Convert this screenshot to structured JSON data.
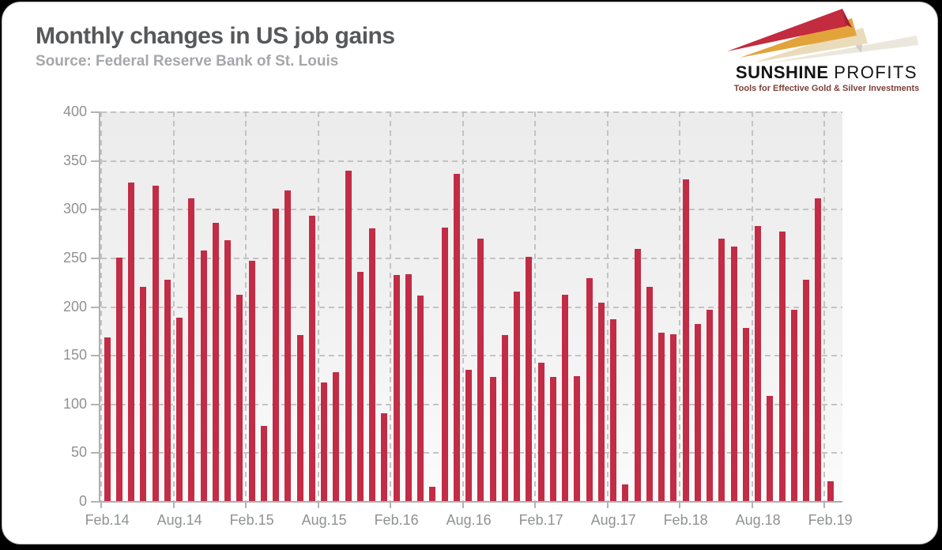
{
  "header": {
    "title": "Monthly changes in US job gains",
    "source": "Source: Federal Reserve Bank of St. Louis"
  },
  "logo": {
    "brand_primary": "SUNSHINE",
    "brand_secondary": "PROFITS",
    "tagline": "Tools for Effective Gold & Silver Investments",
    "colors": {
      "arrow_red": "#c32b3e",
      "arrow_gold": "#e3a33b",
      "arrow_pale": "#eadcbb",
      "tagline_text": "#7d3f38",
      "brand_text": "#141414"
    }
  },
  "chart_data": {
    "type": "bar",
    "title": "Monthly changes in US job gains",
    "ylabel": "",
    "xlabel": "",
    "ylim": [
      0,
      400
    ],
    "y_ticks": [
      0,
      50,
      100,
      150,
      200,
      250,
      300,
      350,
      400
    ],
    "x_tick_labels": [
      "Feb.14",
      "Aug.14",
      "Feb.15",
      "Aug.15",
      "Feb.16",
      "Aug.16",
      "Feb.17",
      "Aug.17",
      "Feb.18",
      "Aug.18",
      "Feb.19"
    ],
    "grid": "dashed gray, horizontal every 50 and vertical every 6 months",
    "legend": "none",
    "bar_color": "#c22c45",
    "x": [
      "Feb-14",
      "Mar-14",
      "Apr-14",
      "May-14",
      "Jun-14",
      "Jul-14",
      "Aug-14",
      "Sep-14",
      "Oct-14",
      "Nov-14",
      "Dec-14",
      "Jan-15",
      "Feb-15",
      "Mar-15",
      "Apr-15",
      "May-15",
      "Jun-15",
      "Jul-15",
      "Aug-15",
      "Sep-15",
      "Oct-15",
      "Nov-15",
      "Dec-15",
      "Jan-16",
      "Feb-16",
      "Mar-16",
      "Apr-16",
      "May-16",
      "Jun-16",
      "Jul-16",
      "Aug-16",
      "Sep-16",
      "Oct-16",
      "Nov-16",
      "Dec-16",
      "Jan-17",
      "Feb-17",
      "Mar-17",
      "Apr-17",
      "May-17",
      "Jun-17",
      "Jul-17",
      "Aug-17",
      "Sep-17",
      "Oct-17",
      "Nov-17",
      "Dec-17",
      "Jan-18",
      "Feb-18",
      "Mar-18",
      "Apr-18",
      "May-18",
      "Jun-18",
      "Jul-18",
      "Aug-18",
      "Sep-18",
      "Oct-18",
      "Nov-18",
      "Dec-18",
      "Jan-19",
      "Feb-19"
    ],
    "values": [
      168,
      250,
      327,
      220,
      324,
      227,
      188,
      311,
      257,
      286,
      268,
      212,
      247,
      77,
      300,
      319,
      170,
      293,
      122,
      132,
      339,
      235,
      280,
      90,
      232,
      233,
      211,
      15,
      281,
      336,
      135,
      269,
      127,
      170,
      215,
      251,
      142,
      127,
      212,
      128,
      229,
      204,
      187,
      17,
      259,
      220,
      173,
      171,
      330,
      182,
      196,
      269,
      261,
      178,
      282,
      108,
      277,
      196,
      227,
      311,
      20
    ]
  }
}
